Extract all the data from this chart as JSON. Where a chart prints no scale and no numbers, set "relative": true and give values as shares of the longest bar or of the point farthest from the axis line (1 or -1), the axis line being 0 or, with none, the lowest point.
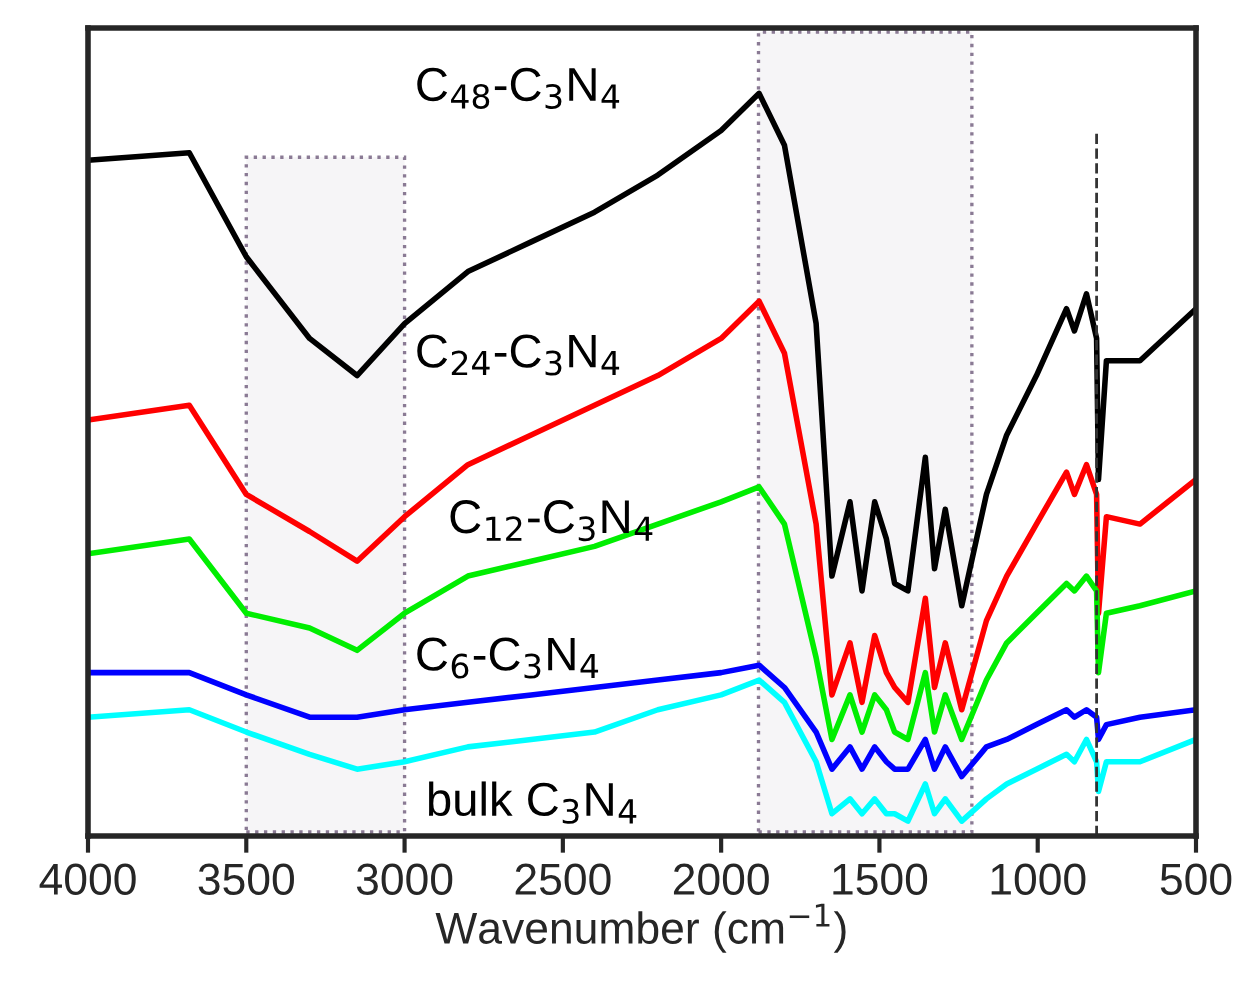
{
  "chart_data": {
    "type": "line",
    "relative": true,
    "xlabel": "Wavenumber (cm$^{−1}$)",
    "x": [
      4000,
      3680,
      3500,
      3300,
      3150,
      3000,
      2800,
      2600,
      2400,
      2200,
      2000,
      1880,
      1800,
      1700,
      1650,
      1593,
      1555,
      1515,
      1478,
      1452,
      1410,
      1355,
      1326,
      1292,
      1240,
      1162,
      1098,
      1004,
      909,
      884,
      846,
      814,
      808,
      783,
      677,
      500
    ],
    "xlim": [
      4000,
      500
    ],
    "xticks": [
      4000,
      3500,
      3000,
      2500,
      2000,
      1500,
      1000,
      500
    ],
    "tick_labels": "x",
    "grid": false,
    "legend": false,
    "marker": "none",
    "line_style": "solid",
    "series": [
      {
        "name": "C$_{48}$-C$_{3}$N$_{4}$",
        "color": "#000000",
        "values": [
          0.91,
          0.92,
          0.78,
          0.67,
          0.62,
          0.69,
          0.76,
          0.8,
          0.84,
          0.89,
          0.95,
          1.0,
          0.93,
          0.69,
          0.35,
          0.45,
          0.33,
          0.45,
          0.4,
          0.34,
          0.33,
          0.51,
          0.36,
          0.44,
          0.31,
          0.46,
          0.54,
          0.62,
          0.71,
          0.68,
          0.73,
          0.67,
          0.48,
          0.64,
          0.64,
          0.71
        ]
      },
      {
        "name": "C$_{24}$-C$_{3}$N$_{4}$",
        "color": "#ff0000",
        "values": [
          0.56,
          0.58,
          0.46,
          0.41,
          0.37,
          0.43,
          0.5,
          0.54,
          0.58,
          0.62,
          0.67,
          0.72,
          0.65,
          0.42,
          0.19,
          0.26,
          0.18,
          0.27,
          0.22,
          0.2,
          0.18,
          0.32,
          0.2,
          0.26,
          0.17,
          0.29,
          0.35,
          0.42,
          0.49,
          0.46,
          0.5,
          0.46,
          0.3,
          0.43,
          0.42,
          0.48
        ]
      },
      {
        "name": "C$_{12}$-C$_{3}$N$_{4}$",
        "color": "#00ee00",
        "values": [
          0.38,
          0.4,
          0.3,
          0.28,
          0.25,
          0.3,
          0.35,
          0.37,
          0.39,
          0.42,
          0.45,
          0.47,
          0.42,
          0.24,
          0.13,
          0.19,
          0.14,
          0.19,
          0.17,
          0.14,
          0.13,
          0.22,
          0.14,
          0.19,
          0.13,
          0.21,
          0.26,
          0.3,
          0.34,
          0.33,
          0.35,
          0.33,
          0.22,
          0.3,
          0.31,
          0.33
        ]
      },
      {
        "name": "C$_{6}$-C$_{3}$N$_{4}$",
        "color": "#0000ff",
        "values": [
          0.22,
          0.22,
          0.19,
          0.16,
          0.16,
          0.17,
          0.18,
          0.19,
          0.2,
          0.21,
          0.22,
          0.23,
          0.2,
          0.14,
          0.09,
          0.12,
          0.09,
          0.12,
          0.1,
          0.09,
          0.09,
          0.13,
          0.09,
          0.12,
          0.08,
          0.12,
          0.13,
          0.15,
          0.17,
          0.16,
          0.17,
          0.16,
          0.13,
          0.15,
          0.16,
          0.17
        ]
      },
      {
        "name": "bulk C$_{3}$N$_{4}$",
        "color": "#00ffff",
        "values": [
          0.16,
          0.17,
          0.14,
          0.11,
          0.09,
          0.1,
          0.12,
          0.13,
          0.14,
          0.17,
          0.19,
          0.21,
          0.18,
          0.1,
          0.03,
          0.05,
          0.03,
          0.05,
          0.03,
          0.03,
          0.02,
          0.07,
          0.03,
          0.05,
          0.02,
          0.05,
          0.07,
          0.09,
          0.11,
          0.1,
          0.13,
          0.1,
          0.06,
          0.1,
          0.1,
          0.13
        ]
      }
    ],
    "bands": [
      {
        "axis": "x",
        "from": 3500,
        "to": 3000,
        "color": "#8a7a94"
      },
      {
        "axis": "x",
        "from": 1882,
        "to": 1208,
        "color": "#8a7a94"
      }
    ],
    "ref_lines": [
      {
        "axis": "x",
        "value": 814,
        "color": "#333333",
        "line_style": "dashed"
      }
    ]
  }
}
